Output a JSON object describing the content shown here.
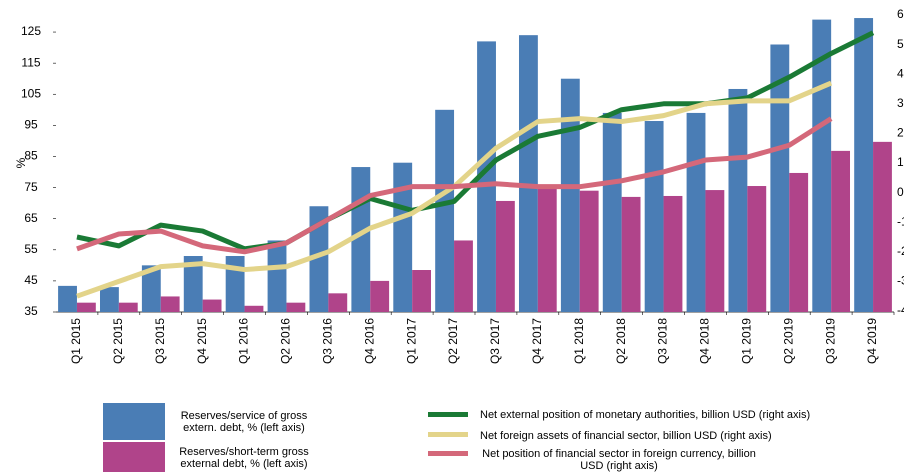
{
  "chart_data": {
    "type": "bar-line",
    "y_label": "%",
    "categories": [
      "Q1 2015",
      "Q2 2015",
      "Q3 2015",
      "Q4 2015",
      "Q1 2016",
      "Q2 2016",
      "Q3 2016",
      "Q4 2016",
      "Q1 2017",
      "Q2 2017",
      "Q3 2017",
      "Q4 2017",
      "Q1 2018",
      "Q2 2018",
      "Q3 2018",
      "Q4 2018",
      "Q1 2019",
      "Q2 2019",
      "Q3 2019",
      "Q4 2019"
    ],
    "ylim": [
      35,
      130
    ],
    "yticks": [
      35,
      45,
      55,
      65,
      75,
      85,
      95,
      105,
      115,
      125
    ],
    "y2lim": [
      -4,
      6
    ],
    "y2ticks": [
      -4,
      -3,
      -2,
      -1,
      0,
      1,
      2,
      3,
      4,
      5,
      6
    ],
    "series": [
      {
        "name": "Reserves/service of gross extern. debt, % (left axis)",
        "type": "bar",
        "color": "#4a7db5",
        "values": [
          43.4,
          43,
          50,
          53,
          53,
          58,
          69,
          81.6,
          83,
          100,
          122,
          124,
          110,
          99,
          96.4,
          99,
          106.7,
          121,
          129,
          129.5
        ]
      },
      {
        "name": "Reserves/short-term gross external debt, % (left axis)",
        "type": "bar",
        "color": "#b0448a",
        "values": [
          38,
          38,
          40,
          39,
          37,
          38,
          41,
          45,
          48.5,
          58,
          70.7,
          75,
          74,
          72,
          72.3,
          74.2,
          75.5,
          79.7,
          86.8,
          89.7
        ]
      },
      {
        "name": "Net external position of monetary authorities, billion USD (right axis)",
        "type": "line",
        "axis": "y2",
        "color": "#1a7a35",
        "values": [
          -1.5,
          -1.8,
          -1.1,
          -1.3,
          -1.9,
          -1.7,
          -0.9,
          -0.2,
          -0.6,
          -0.3,
          1.1,
          1.9,
          2.2,
          2.8,
          3.0,
          3.0,
          3.2,
          3.9,
          4.7,
          5.4
        ]
      },
      {
        "name": "Net foreign assets of financial sector,  billion USD (right axis)",
        "type": "line",
        "axis": "y2",
        "color": "#e3d48a",
        "values": [
          -3.5,
          -3.0,
          -2.5,
          -2.4,
          -2.6,
          -2.5,
          -2.0,
          -1.2,
          -0.7,
          0.2,
          1.5,
          2.4,
          2.5,
          2.4,
          2.6,
          3.0,
          3.1,
          3.1,
          3.7,
          null
        ]
      },
      {
        "name": "Net position of financial sector in foreign currency, billion USD (right axis)",
        "type": "line",
        "axis": "y2",
        "color": "#d4687a",
        "values": [
          -1.9,
          -1.4,
          -1.3,
          -1.8,
          -2.0,
          -1.7,
          -0.9,
          -0.1,
          0.2,
          0.2,
          0.3,
          0.2,
          0.2,
          0.4,
          0.7,
          1.1,
          1.2,
          1.6,
          2.5,
          null
        ]
      }
    ]
  }
}
